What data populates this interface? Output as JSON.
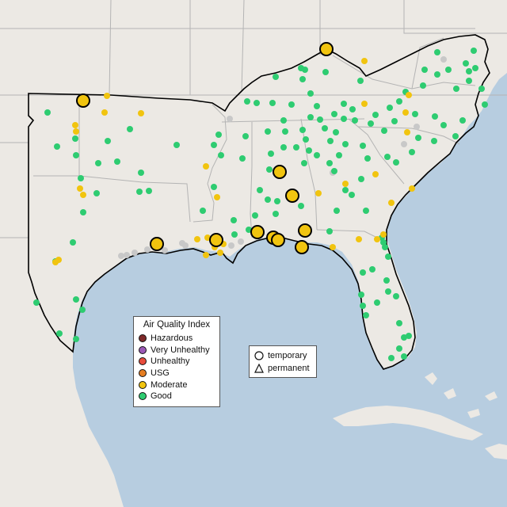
{
  "legend": {
    "title": "Air Quality Index",
    "categories": [
      {
        "label": "Hazardous",
        "color": "#7e2a2a"
      },
      {
        "label": "Very Unhealthy",
        "color": "#9b59b6"
      },
      {
        "label": "Unhealthy",
        "color": "#e74c3c"
      },
      {
        "label": "USG",
        "color": "#e67e22"
      },
      {
        "label": "Moderate",
        "color": "#f1c40f"
      },
      {
        "label": "Good",
        "color": "#2ecc71"
      }
    ]
  },
  "monitor_types": [
    {
      "label": "temporary",
      "shape": "circle"
    },
    {
      "label": "permanent",
      "shape": "triangle"
    }
  ],
  "colors": {
    "water": "#b7cde0",
    "land": "#ece9e4",
    "region_outline": "#000000",
    "state_border": "#b4b4b4",
    "neutral_monitor": "#c8c8c8"
  }
}
